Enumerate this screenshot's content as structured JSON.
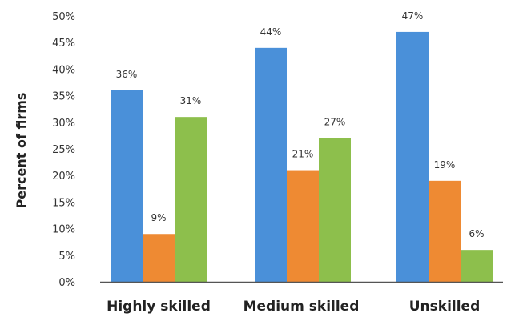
{
  "chart_data": {
    "type": "bar",
    "categories": [
      "Highly skilled",
      "Medium skilled",
      "Unskilled"
    ],
    "series": [
      {
        "color": "#4a90d9",
        "values": [
          36,
          44,
          47
        ],
        "labels": [
          "36%",
          "44%",
          "47%"
        ]
      },
      {
        "color": "#ee8a33",
        "values": [
          9,
          21,
          19
        ],
        "labels": [
          "9%",
          "21%",
          "19%"
        ]
      },
      {
        "color": "#8dbf4c",
        "values": [
          31,
          27,
          6
        ],
        "labels": [
          "31%",
          "27%",
          "6%"
        ]
      }
    ],
    "ylabel": "Percent of firms",
    "xlabel": "",
    "ylim": [
      0,
      50
    ],
    "yticks": [
      "0%",
      "5%",
      "10%",
      "15%",
      "20%",
      "25%",
      "30%",
      "35%",
      "40%",
      "45%",
      "50%"
    ],
    "grid": false,
    "legend": "none"
  }
}
